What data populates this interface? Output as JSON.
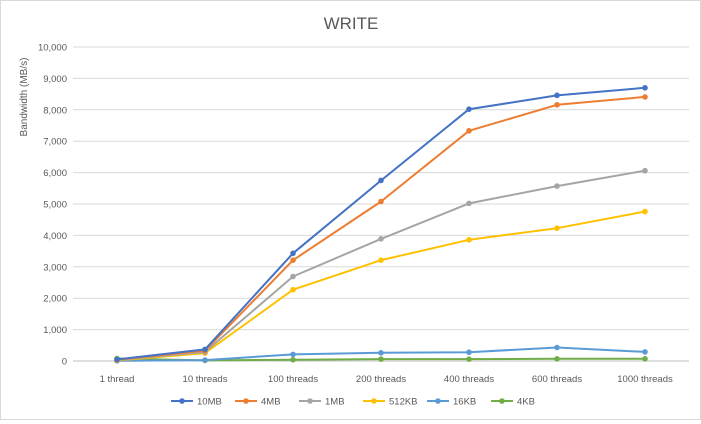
{
  "chart_data": {
    "type": "line",
    "title": "WRITE",
    "xlabel": "",
    "ylabel": "Bandwidth (MB/s)",
    "categories": [
      "1 thread",
      "10 threads",
      "100 threads",
      "200 threads",
      "400 threads",
      "600 threads",
      "1000 threads"
    ],
    "ylim": [
      0,
      10000
    ],
    "yticks": [
      0,
      1000,
      2000,
      3000,
      4000,
      5000,
      6000,
      7000,
      8000,
      9000,
      10000
    ],
    "ytick_labels": [
      "0",
      "1,000",
      "2,000",
      "3,000",
      "4,000",
      "5,000",
      "6,000",
      "7,000",
      "8,000",
      "9,000",
      "10,000"
    ],
    "grid": true,
    "legend_position": "bottom",
    "series": [
      {
        "name": "10MB",
        "color": "#4472c4",
        "values": [
          50,
          370,
          3430,
          5750,
          8020,
          8460,
          8700
        ]
      },
      {
        "name": "4MB",
        "color": "#ed7d31",
        "values": [
          40,
          330,
          3210,
          5080,
          7330,
          8160,
          8410
        ]
      },
      {
        "name": "1MB",
        "color": "#a5a5a5",
        "values": [
          30,
          290,
          2690,
          3890,
          5020,
          5570,
          6060
        ]
      },
      {
        "name": "512KB",
        "color": "#ffc000",
        "values": [
          20,
          250,
          2270,
          3210,
          3860,
          4230,
          4760
        ]
      },
      {
        "name": "16KB",
        "color": "#5b9bd5",
        "values": [
          5,
          30,
          210,
          260,
          280,
          430,
          290
        ]
      },
      {
        "name": "4KB",
        "color": "#70ad47",
        "values": [
          80,
          20,
          40,
          60,
          60,
          70,
          70
        ]
      }
    ]
  }
}
